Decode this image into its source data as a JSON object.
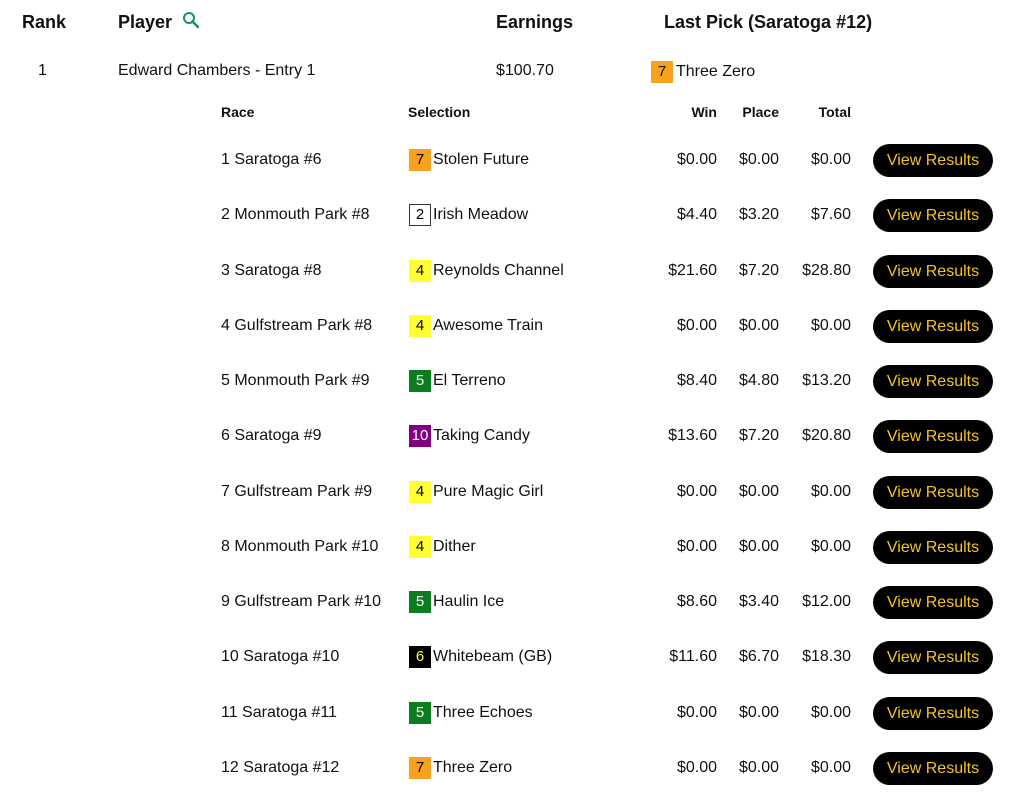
{
  "header": {
    "rank": "Rank",
    "player": "Player",
    "earnings": "Earnings",
    "last_pick": "Last Pick (Saratoga #12)",
    "search_icon": "magnifier-icon"
  },
  "entry": {
    "rank": "1",
    "player": "Edward Chambers - Entry 1",
    "earnings": "$100.70",
    "last_pick_num": "7",
    "last_pick_name": "Three Zero",
    "last_pick_color": "#f7a11d"
  },
  "sub_header": {
    "race": "Race",
    "selection": "Selection",
    "win": "Win",
    "place": "Place",
    "total": "Total"
  },
  "rows": [
    {
      "race": "1 Saratoga #6",
      "num": "7",
      "bg": "#f7a11d",
      "fg": "#000000",
      "horse": "Stolen Future",
      "win": "$0.00",
      "place": "$0.00",
      "total": "$0.00",
      "button": "View Results"
    },
    {
      "race": "2 Monmouth Park #8",
      "num": "2",
      "bg": "#ffffff",
      "fg": "#000000",
      "horse": "Irish Meadow",
      "win": "$4.40",
      "place": "$3.20",
      "total": "$7.60",
      "button": "View Results"
    },
    {
      "race": "3 Saratoga #8",
      "num": "4",
      "bg": "#ffff33",
      "fg": "#000000",
      "horse": "Reynolds Channel",
      "win": "$21.60",
      "place": "$7.20",
      "total": "$28.80",
      "button": "View Results"
    },
    {
      "race": "4 Gulfstream Park #8",
      "num": "4",
      "bg": "#ffff33",
      "fg": "#000000",
      "horse": "Awesome Train",
      "win": "$0.00",
      "place": "$0.00",
      "total": "$0.00",
      "button": "View Results"
    },
    {
      "race": "5 Monmouth Park #9",
      "num": "5",
      "bg": "#0a7d1f",
      "fg": "#ffffff",
      "horse": "El Terreno",
      "win": "$8.40",
      "place": "$4.80",
      "total": "$13.20",
      "button": "View Results"
    },
    {
      "race": "6 Saratoga #9",
      "num": "10",
      "bg": "#800080",
      "fg": "#ffffff",
      "horse": "Taking Candy",
      "win": "$13.60",
      "place": "$7.20",
      "total": "$20.80",
      "button": "View Results"
    },
    {
      "race": "7 Gulfstream Park #9",
      "num": "4",
      "bg": "#ffff33",
      "fg": "#000000",
      "horse": "Pure Magic Girl",
      "win": "$0.00",
      "place": "$0.00",
      "total": "$0.00",
      "button": "View Results"
    },
    {
      "race": "8 Monmouth Park #10",
      "num": "4",
      "bg": "#ffff33",
      "fg": "#000000",
      "horse": "Dither",
      "win": "$0.00",
      "place": "$0.00",
      "total": "$0.00",
      "button": "View Results"
    },
    {
      "race": "9 Gulfstream Park #10",
      "num": "5",
      "bg": "#0a7d1f",
      "fg": "#ffffff",
      "horse": "Haulin Ice",
      "win": "$8.60",
      "place": "$3.40",
      "total": "$12.00",
      "button": "View Results"
    },
    {
      "race": "10 Saratoga #10",
      "num": "6",
      "bg": "#000000",
      "fg": "#ffff33",
      "horse": "Whitebeam (GB)",
      "win": "$11.60",
      "place": "$6.70",
      "total": "$18.30",
      "button": "View Results"
    },
    {
      "race": "11 Saratoga #11",
      "num": "5",
      "bg": "#0a7d1f",
      "fg": "#ffffff",
      "horse": "Three Echoes",
      "win": "$0.00",
      "place": "$0.00",
      "total": "$0.00",
      "button": "View Results"
    },
    {
      "race": "12 Saratoga #12",
      "num": "7",
      "bg": "#f7a11d",
      "fg": "#000000",
      "horse": "Three Zero",
      "win": "$0.00",
      "place": "$0.00",
      "total": "$0.00",
      "button": "View Results"
    }
  ]
}
